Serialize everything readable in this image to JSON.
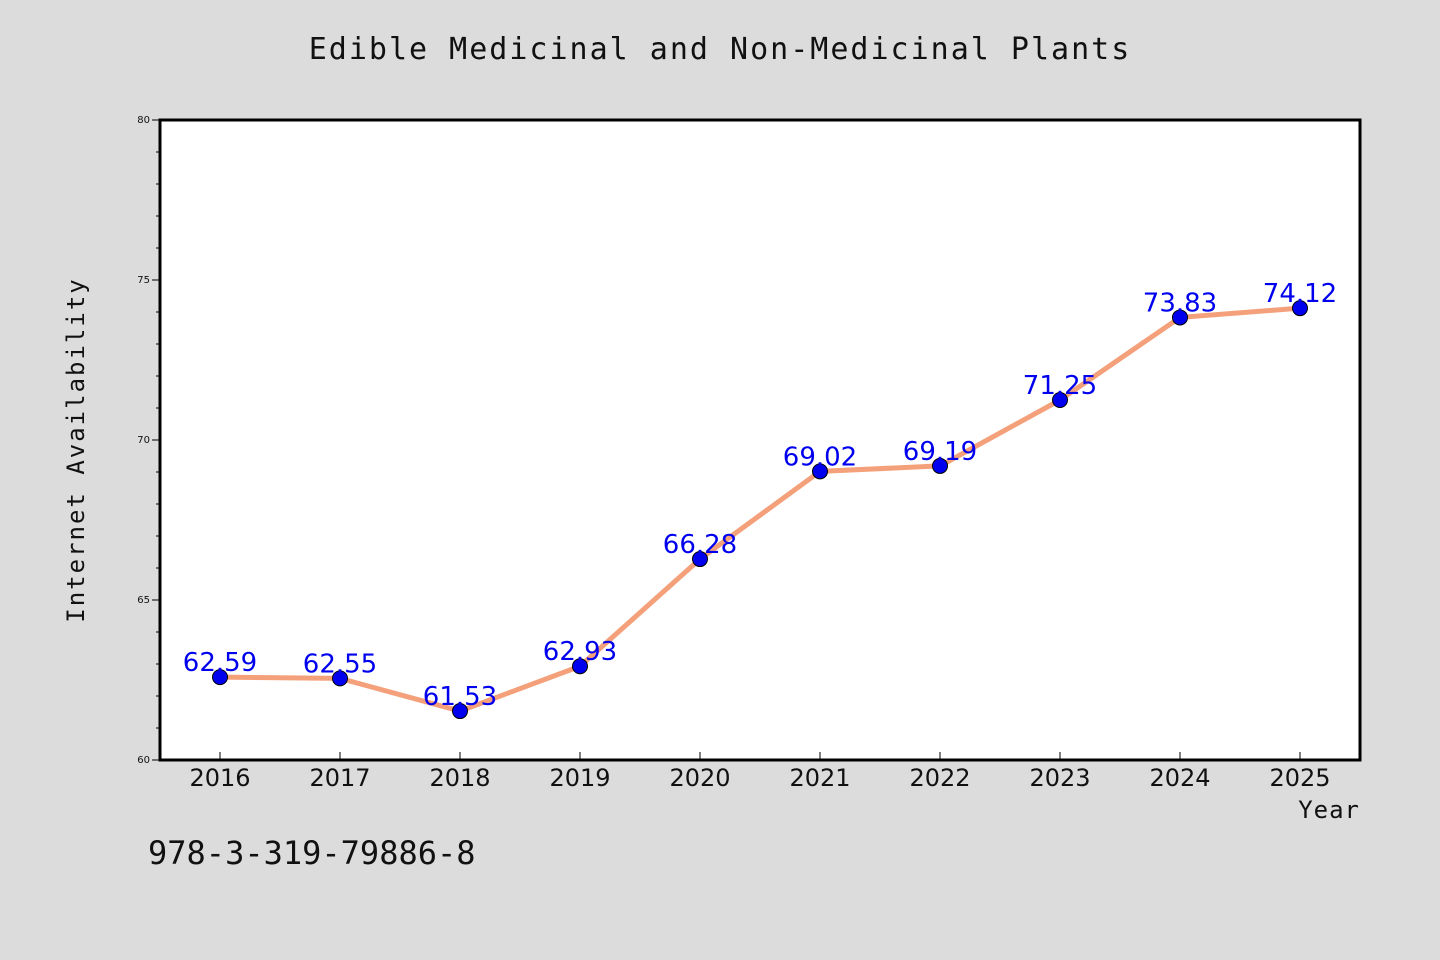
{
  "chart_data": {
    "type": "line",
    "title": "Edible Medicinal and Non-Medicinal Plants",
    "xlabel": "Year",
    "ylabel": "Internet Availability",
    "x": [
      "2016",
      "2017",
      "2018",
      "2019",
      "2020",
      "2021",
      "2022",
      "2023",
      "2024",
      "2025"
    ],
    "series": [
      {
        "values": [
          62.59,
          62.55,
          61.53,
          62.93,
          66.28,
          69.02,
          69.19,
          71.25,
          73.83,
          74.12
        ],
        "labels": [
          "62.59",
          "62.55",
          "61.53",
          "62.93",
          "66.28",
          "69.02",
          "69.19",
          "71.25",
          "73.83",
          "74.12"
        ]
      }
    ],
    "ylim": [
      60,
      80
    ],
    "yticks": [
      "60",
      "65",
      "70",
      "75",
      "80"
    ],
    "grid": false,
    "colors": {
      "line": "#f4a07a",
      "marker": "#0000ee",
      "label": "#0000ee",
      "background": "#dcdcdc",
      "plot_area": "#ffffff"
    }
  },
  "footnote": "978-3-319-79886-8"
}
